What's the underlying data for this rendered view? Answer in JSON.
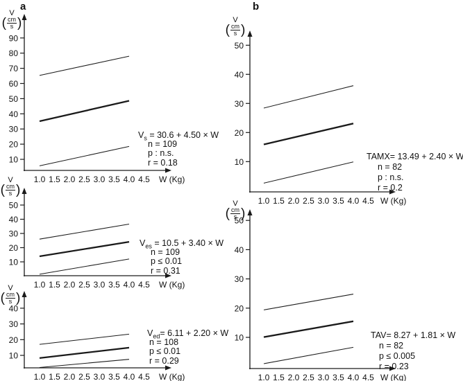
{
  "panels": {
    "a": "a",
    "b": "b"
  },
  "axis_unit": {
    "v": "V",
    "num": "cm",
    "den": "s"
  },
  "chart_data": [
    {
      "type": "line",
      "panel": "a",
      "name": "Vs",
      "ylabel": "V (cm/s)",
      "xlabel": "W (Kg)",
      "x_ticks": [
        "1.0",
        "1.5",
        "2.0",
        "2.5",
        "3.0",
        "3.5",
        "4.0",
        "4.5"
      ],
      "y_ticks": [
        10,
        20,
        30,
        40,
        50,
        60,
        70,
        80,
        90
      ],
      "xlim": [
        0.5,
        5.4
      ],
      "ylim": [
        0,
        100
      ],
      "series": [
        {
          "name": "regression",
          "style": "thick",
          "x": [
            1.0,
            4.0
          ],
          "y": [
            35.1,
            48.6
          ]
        },
        {
          "name": "upper-band",
          "style": "thin",
          "x": [
            1.0,
            4.0
          ],
          "y": [
            65.3,
            78.0
          ]
        },
        {
          "name": "lower-band",
          "style": "thin",
          "x": [
            1.0,
            4.0
          ],
          "y": [
            5.7,
            18.5
          ]
        }
      ],
      "equation": {
        "base": "V",
        "sub": "s",
        "rest": " = 30.6 + 4.50 × W"
      },
      "stats": [
        "n = 109",
        "p : n.s.",
        "r = 0.18"
      ]
    },
    {
      "type": "line",
      "panel": "a",
      "name": "Ves",
      "ylabel": "V (cm/s)",
      "xlabel": "W (Kg)",
      "x_ticks": [
        "1.0",
        "1.5",
        "2.0",
        "2.5",
        "3.0",
        "3.5",
        "4.0",
        "4.5"
      ],
      "y_ticks": [
        10,
        20,
        30,
        40,
        50
      ],
      "xlim": [
        0.5,
        5.4
      ],
      "ylim": [
        0,
        57
      ],
      "series": [
        {
          "name": "regression",
          "style": "thick",
          "x": [
            1.0,
            4.0
          ],
          "y": [
            13.9,
            24.1
          ]
        },
        {
          "name": "upper-band",
          "style": "thin",
          "x": [
            1.0,
            4.0
          ],
          "y": [
            26.0,
            36.6
          ]
        },
        {
          "name": "lower-band",
          "style": "thin",
          "x": [
            1.0,
            4.0
          ],
          "y": [
            1.3,
            12.0
          ]
        }
      ],
      "equation": {
        "base": "V",
        "sub": "es",
        "rest": " = 10.5 + 3.40 × W"
      },
      "stats": [
        "n = 109",
        "p ≤ 0.01",
        "r = 0.31"
      ]
    },
    {
      "type": "line",
      "panel": "a",
      "name": "Ved",
      "ylabel": "V (cm/s)",
      "xlabel": "W (Kg)",
      "x_ticks": [
        "1.0",
        "1.5",
        "2.0",
        "2.5",
        "3.0",
        "3.5",
        "4.0",
        "4.5"
      ],
      "y_ticks": [
        10,
        20,
        30,
        40
      ],
      "xlim": [
        0.5,
        5.4
      ],
      "ylim": [
        0,
        50
      ],
      "series": [
        {
          "name": "regression",
          "style": "thick",
          "x": [
            1.0,
            4.0
          ],
          "y": [
            8.3,
            14.9
          ]
        },
        {
          "name": "upper-band",
          "style": "thin",
          "x": [
            1.0,
            4.0
          ],
          "y": [
            17.0,
            23.5
          ]
        },
        {
          "name": "lower-band",
          "style": "thin",
          "x": [
            1.0,
            4.0
          ],
          "y": [
            2.3,
            7.5
          ]
        }
      ],
      "equation": {
        "base": "V",
        "sub": "ed",
        "rest": "= 6.11 + 2.20 × W"
      },
      "stats": [
        "n = 108",
        "p ≤ 0.01",
        "r = 0.29"
      ]
    },
    {
      "type": "line",
      "panel": "b",
      "name": "TAMX",
      "ylabel": "V (cm/s)",
      "xlabel": "W (Kg)",
      "x_ticks": [
        "1.0",
        "1.5",
        "2.0",
        "2.5",
        "3.0",
        "3.5",
        "4.0",
        "4.5"
      ],
      "y_ticks": [
        10,
        20,
        30,
        40,
        50
      ],
      "xlim": [
        0.5,
        5.4
      ],
      "ylim": [
        0,
        57
      ],
      "series": [
        {
          "name": "regression",
          "style": "thick",
          "x": [
            1.0,
            4.0
          ],
          "y": [
            15.9,
            23.1
          ]
        },
        {
          "name": "upper-band",
          "style": "thin",
          "x": [
            1.0,
            4.0
          ],
          "y": [
            28.4,
            36.1
          ]
        },
        {
          "name": "lower-band",
          "style": "thin",
          "x": [
            1.0,
            4.0
          ],
          "y": [
            2.6,
            9.9
          ]
        }
      ],
      "equation": {
        "base": "TAMX",
        "sub": "",
        "rest": "= 13.49 + 2.40 × W"
      },
      "stats": [
        "n = 82",
        "p : n.s.",
        "r = 0.2"
      ]
    },
    {
      "type": "line",
      "panel": "b",
      "name": "TAV",
      "ylabel": "V (cm/s)",
      "xlabel": "W (Kg)",
      "x_ticks": [
        "1.0",
        "1.5",
        "2.0",
        "2.5",
        "3.0",
        "3.5",
        "4.0",
        "4.5"
      ],
      "y_ticks": [
        10,
        20,
        30,
        40,
        50
      ],
      "xlim": [
        0.5,
        5.4
      ],
      "ylim": [
        0,
        55
      ],
      "series": [
        {
          "name": "regression",
          "style": "thick",
          "x": [
            1.0,
            4.0
          ],
          "y": [
            10.1,
            15.5
          ]
        },
        {
          "name": "upper-band",
          "style": "thin",
          "x": [
            1.0,
            4.0
          ],
          "y": [
            19.4,
            24.8
          ]
        },
        {
          "name": "lower-band",
          "style": "thin",
          "x": [
            1.0,
            4.0
          ],
          "y": [
            1.0,
            6.6
          ]
        }
      ],
      "equation": {
        "base": "TAV",
        "sub": "",
        "rest": "= 8.27 + 1.81 × W"
      },
      "stats": [
        "n = 82",
        "p ≤ 0.005",
        "r = 0.23"
      ]
    }
  ]
}
